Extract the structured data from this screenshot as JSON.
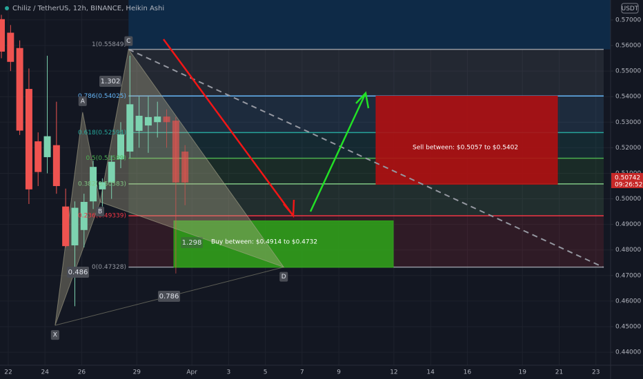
{
  "chart_data": {
    "type": "candlestick",
    "title": "Chiliz / TetherUS, 12h, BINANCE, Heikin Ashi",
    "currency": "USDT",
    "x": [
      -0.75,
      0.25,
      1.25,
      2.25,
      3.25,
      4.25,
      5.25,
      6.25,
      7.25,
      8.25,
      9.25,
      10.25,
      11.25,
      12.25,
      13.25,
      14.25,
      15.25,
      16.25,
      17.25,
      18.25,
      19.25
    ],
    "open": [
      0.5703,
      0.565,
      0.559,
      0.543,
      0.5225,
      0.5163,
      0.521,
      0.497,
      0.4818,
      0.4878,
      0.499,
      0.5037,
      0.5064,
      0.5155,
      0.5185,
      0.5266,
      0.5287,
      0.53,
      0.5322,
      0.5306,
      0.5185
    ],
    "high": [
      0.572,
      0.568,
      0.562,
      0.551,
      0.526,
      0.556,
      0.538,
      0.504,
      0.499,
      0.502,
      0.515,
      0.508,
      0.517,
      0.53,
      0.556,
      0.54,
      0.54,
      0.538,
      0.535,
      0.532,
      0.521
    ],
    "low": [
      0.555,
      0.55,
      0.525,
      0.498,
      0.505,
      0.51,
      0.502,
      0.481,
      0.458,
      0.481,
      0.496,
      0.497,
      0.5,
      0.512,
      0.516,
      0.52,
      0.518,
      0.524,
      0.52,
      0.4708,
      0.4975
    ],
    "close": [
      0.5576,
      0.5536,
      0.5267,
      0.5037,
      0.5105,
      0.5245,
      0.505,
      0.4815,
      0.4965,
      0.4988,
      0.5125,
      0.5065,
      0.5145,
      0.5252,
      0.537,
      0.5325,
      0.532,
      0.5322,
      0.53,
      0.5064,
      0.5064
    ],
    "up_color": "#7dd3b0",
    "down_color": "#ef5350",
    "xlim": [
      -0.9,
      65.6
    ],
    "xticks": [
      {
        "value": 0,
        "label": "22"
      },
      {
        "value": 4,
        "label": "24"
      },
      {
        "value": 8,
        "label": "26"
      },
      {
        "value": 14,
        "label": "29"
      },
      {
        "value": 20,
        "label": "Apr"
      },
      {
        "value": 24,
        "label": "3"
      },
      {
        "value": 28,
        "label": "5"
      },
      {
        "value": 32,
        "label": "7"
      },
      {
        "value": 36,
        "label": "9"
      },
      {
        "value": 42,
        "label": "12"
      },
      {
        "value": 46,
        "label": "14"
      },
      {
        "value": 50,
        "label": "16"
      },
      {
        "value": 56,
        "label": "19"
      },
      {
        "value": 60,
        "label": "21"
      },
      {
        "value": 64,
        "label": "23"
      }
    ],
    "ylim": [
      0.4349,
      0.5778
    ],
    "yticks": [
      {
        "value": 0.44,
        "label": "0.44000"
      },
      {
        "value": 0.45,
        "label": "0.45000"
      },
      {
        "value": 0.46,
        "label": "0.46000"
      },
      {
        "value": 0.47,
        "label": "0.47000"
      },
      {
        "value": 0.48,
        "label": "0.48000"
      },
      {
        "value": 0.49,
        "label": "0.49000"
      },
      {
        "value": 0.5,
        "label": "0.50000"
      },
      {
        "value": 0.51,
        "label": "0.51000"
      },
      {
        "value": 0.52,
        "label": "0.52000"
      },
      {
        "value": 0.53,
        "label": "0.53000"
      },
      {
        "value": 0.54,
        "label": "0.54000"
      },
      {
        "value": 0.55,
        "label": "0.55000"
      },
      {
        "value": 0.56,
        "label": "0.56000"
      },
      {
        "value": 0.57,
        "label": "0.57000"
      }
    ],
    "grid": true,
    "last_price": {
      "value": 0.50742,
      "label": "0.50742"
    },
    "countdown": "09:26:52",
    "fib_levels": [
      {
        "label": "1(0.55849)",
        "value": 0.55849,
        "color": "#9598a1"
      },
      {
        "label": "0.786(0.54025)",
        "value": 0.54025,
        "color": "#64b5f6"
      },
      {
        "label": "0.618(0.52594)",
        "value": 0.52594,
        "color": "#26a69a"
      },
      {
        "label": "0.5(0.51589)",
        "value": 0.51589,
        "color": "#4caf50"
      },
      {
        "label": "0.382(0.50583)",
        "value": 0.50583,
        "color": "#81c784"
      },
      {
        "label": "0.236(0.49339)",
        "value": 0.49339,
        "color": "#f23645"
      },
      {
        "label": "0(0.47328)",
        "value": 0.47328,
        "color": "#9598a1"
      }
    ],
    "pattern_points": [
      {
        "name": "X",
        "x": 5.1,
        "y": 0.4505
      },
      {
        "name": "A",
        "x": 8.1,
        "y": 0.5339
      },
      {
        "name": "B",
        "x": 10,
        "y": 0.4988
      },
      {
        "name": "C",
        "x": 13.1,
        "y": 0.55849
      },
      {
        "name": "D",
        "x": 30,
        "y": 0.47328
      }
    ],
    "pattern_ratios": [
      1.302,
      0.486,
      0.786,
      1.298
    ],
    "zones": [
      {
        "label": "Buy between: $0.4914 to $0.4732",
        "high": 0.4914,
        "low": 0.4732,
        "color": "#2f9e1b"
      },
      {
        "label": "Sell between: $0.5057 to $0.5402",
        "high": 0.5402,
        "low": 0.5057,
        "color": "#b01012"
      }
    ]
  }
}
